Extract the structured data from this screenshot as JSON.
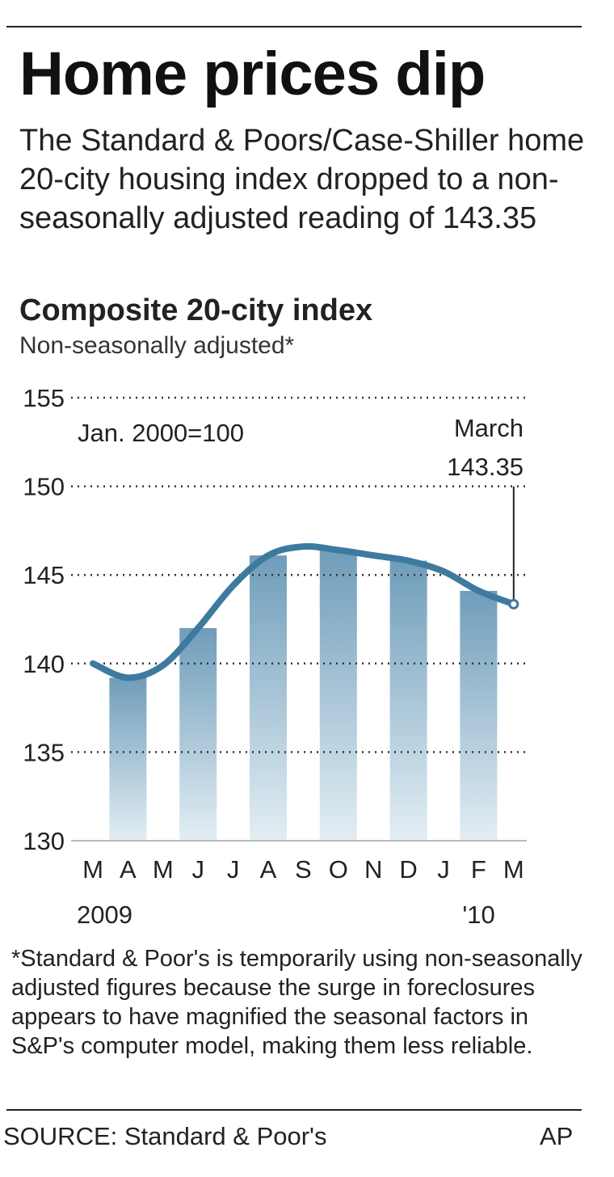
{
  "headline": "Home prices dip",
  "intro": "The Standard & Poors/Case-Shiller home 20-city housing index dropped to a non-seasonally adjusted reading of 143.35",
  "chart_data": {
    "type": "line",
    "title": "Composite 20-city index",
    "subtitle": "Non-seasonally adjusted*",
    "base_note": "Jan. 2000=100",
    "categories": [
      "M",
      "A",
      "M",
      "J",
      "J",
      "A",
      "S",
      "O",
      "N",
      "D",
      "J",
      "F",
      "M"
    ],
    "year_labels": [
      {
        "index": 0,
        "label": "2009"
      },
      {
        "index": 11,
        "label": "'10"
      }
    ],
    "series": [
      {
        "values": [
          140.0,
          139.2,
          139.9,
          142.0,
          144.4,
          146.1,
          146.6,
          146.4,
          146.1,
          145.8,
          145.2,
          144.1,
          143.35
        ]
      }
    ],
    "shaded_bar_indices": [
      1,
      3,
      5,
      7,
      9,
      11
    ],
    "ylim": [
      130,
      155
    ],
    "yticks": [
      155,
      150,
      145,
      140,
      135,
      130
    ],
    "grid": true,
    "annotation": {
      "index": 12,
      "label": "March",
      "value_label": "143.35"
    },
    "colors": {
      "line": "#3e7a9e",
      "bar_top": "#6f9dba",
      "bar_bottom": "#e3eef4"
    }
  },
  "footnote": "*Standard & Poor's is temporarily using non-seasonally adjusted figures because the surge in foreclosures appears to have magnified the seasonal factors in S&P's computer model, making them less reliable.",
  "source": "SOURCE: Standard & Poor's",
  "credit": "AP"
}
